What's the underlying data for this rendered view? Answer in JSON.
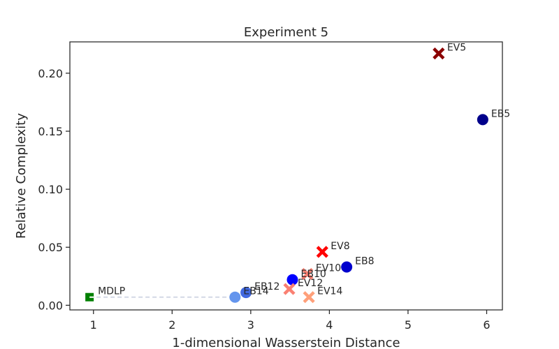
{
  "chart_data": {
    "type": "scatter",
    "title": "Experiment 5",
    "xlabel": "1-dimensional Wasserstein Distance",
    "ylabel": "Relative Complexity",
    "xlim": [
      0.7,
      6.2
    ],
    "ylim": [
      -0.004,
      0.227
    ],
    "xticks": [
      "1",
      "2",
      "3",
      "4",
      "5",
      "6"
    ],
    "yticks": [
      "0.00",
      "0.05",
      "0.10",
      "0.15",
      "0.20"
    ],
    "grid": false,
    "points": [
      {
        "label": "EV5",
        "x": 5.39,
        "y": 0.217,
        "marker": "x",
        "color": "#8b0000"
      },
      {
        "label": "EB5",
        "x": 5.95,
        "y": 0.16,
        "marker": "circle",
        "color": "#00008b"
      },
      {
        "label": "EV8",
        "x": 3.91,
        "y": 0.046,
        "marker": "x",
        "color": "#ff0000"
      },
      {
        "label": "EB8",
        "x": 4.22,
        "y": 0.033,
        "marker": "circle",
        "color": "#0000cd"
      },
      {
        "label": "EV10",
        "x": 3.72,
        "y": 0.027,
        "marker": "x",
        "color": "#fa8072"
      },
      {
        "label": "EB10",
        "x": 3.53,
        "y": 0.022,
        "marker": "circle",
        "color": "#0000ff"
      },
      {
        "label": "EV12",
        "x": 3.49,
        "y": 0.014,
        "marker": "x",
        "color": "#fa8072"
      },
      {
        "label": "EB12",
        "x": 2.94,
        "y": 0.011,
        "marker": "circle",
        "color": "#4169e1"
      },
      {
        "label": "EV14",
        "x": 3.74,
        "y": 0.007,
        "marker": "x",
        "color": "#ffa07a"
      },
      {
        "label": "EB14",
        "x": 2.8,
        "y": 0.007,
        "marker": "circle",
        "color": "#6495ed"
      },
      {
        "label": "MDLP",
        "x": 0.95,
        "y": 0.007,
        "marker": "square",
        "color": "#008000"
      }
    ],
    "connector": {
      "from": "MDLP",
      "to": "EB14",
      "style": "dashed",
      "color": "#cbd0e0"
    }
  }
}
